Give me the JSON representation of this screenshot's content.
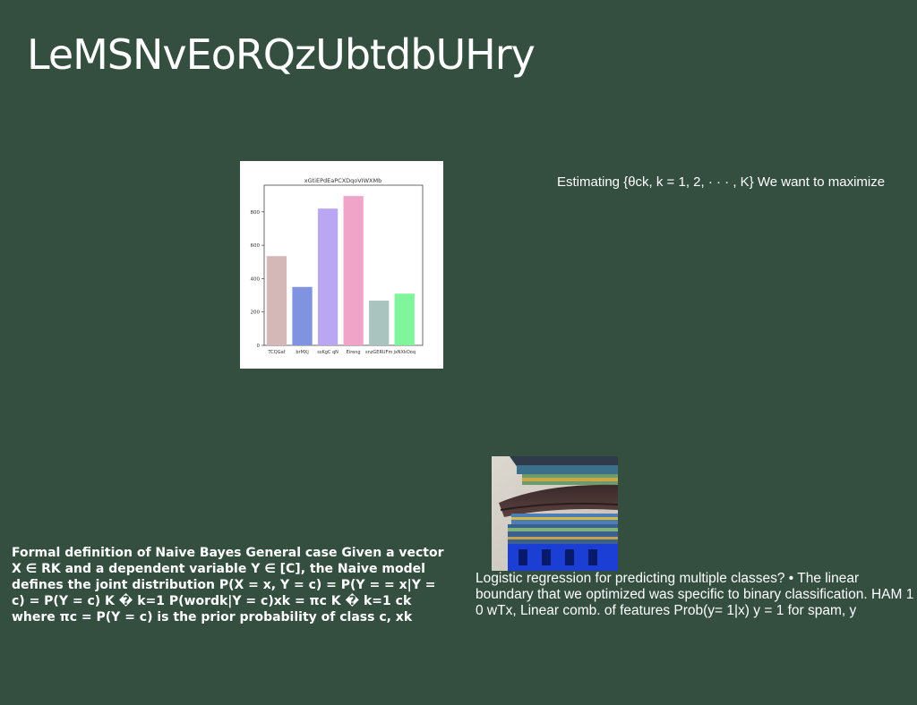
{
  "slide": {
    "title": "LeMSNvEoRQzUbtdbUHry",
    "text_right": "Estimating {θck, k = 1, 2, · · · , K} We want to maximize ",
    "text_left": "Formal definition of Naive Bayes General case Given a vector X ∈ RK and a dependent variable Y ∈ [C], the Naive model defines the joint distribution P(X = x, Y = c) = P(Y = = x|Y = c) = P(Y = c) K � k=1 P(wordk|Y = c)xk = πc K � k=1 ck where πc = P(Y = c) is the prior probability of class c, xk",
    "text_bottom": "Logistic regression for predicting multiple classes? • The linear boundary that we optimized was specific to binary classification. HAM 1 0 wTx, Linear comb. of features Prob(y= 1|x) y = 1 for spam, y"
  },
  "chart_data": {
    "type": "bar",
    "title": "xGtiEPdEaPCXDqoVIWXMb",
    "categories": [
      "TCQGaf",
      "brMXj",
      "ssKgC qN",
      "Eireng",
      "snzGERUFm",
      "jxNXkOoq"
    ],
    "values": [
      535,
      350,
      820,
      895,
      268,
      310
    ],
    "colors": [
      "#d4b8b8",
      "#7f93e0",
      "#b9a7f3",
      "#f0a4c8",
      "#a9c4bf",
      "#80f59c"
    ],
    "yticks": [
      "0",
      "200",
      "400",
      "600",
      "800"
    ],
    "ylim": [
      0,
      960
    ],
    "xlabel": "",
    "ylabel": ""
  },
  "photo": {
    "icon": "temple-photo"
  }
}
